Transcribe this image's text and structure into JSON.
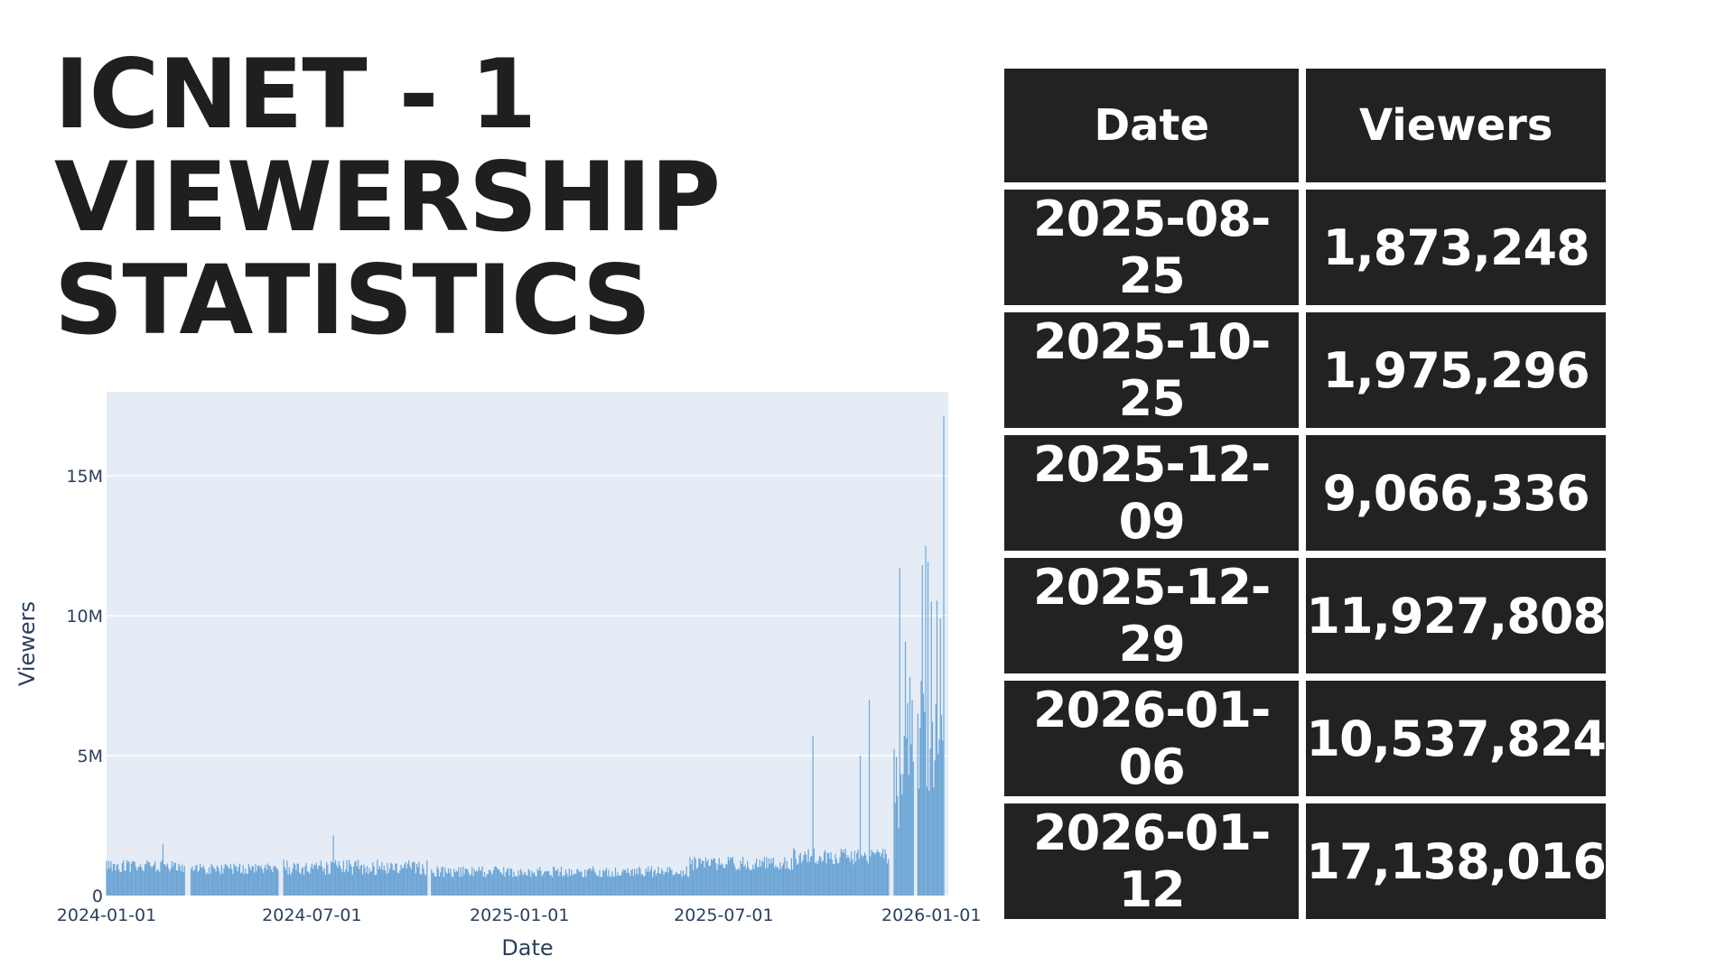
{
  "title": {
    "line1": "ICNET - 1",
    "line2": "VIEWERSHIP",
    "line3": "STATISTICS"
  },
  "colors": {
    "bar": "#5b9bd0",
    "plot_bg": "#e5ecf6",
    "grid": "#ffffff",
    "table_bg": "#242221",
    "table_text": "#ffffff",
    "title_text": "#1f1f1f"
  },
  "chart_data": {
    "type": "bar",
    "xlabel": "Date",
    "ylabel": "Viewers",
    "x_tick_labels": [
      "2024-01-01",
      "2024-07-01",
      "2025-01-01",
      "2025-07-01",
      "2026-01-01"
    ],
    "x_range": [
      "2024-01-01",
      "2026-01-12"
    ],
    "y_tick_labels": [
      "0",
      "5M",
      "10M",
      "15M"
    ],
    "y_ticks": [
      0,
      5000000,
      10000000,
      15000000
    ],
    "ylim": [
      0,
      18000000
    ],
    "grid": true,
    "legend": "none",
    "gaps": [
      [
        "2024-03-11",
        "2024-03-15"
      ],
      [
        "2024-06-02",
        "2024-06-05"
      ],
      [
        "2024-09-12",
        "2024-09-14"
      ],
      [
        "2024-10-12",
        "2024-10-14"
      ],
      [
        "2025-11-25",
        "2025-11-28"
      ],
      [
        "2025-12-17",
        "2025-12-19"
      ]
    ],
    "segments": [
      {
        "start": "2024-01-01",
        "end": "2024-03-10",
        "base": 1050000,
        "var": 220000
      },
      {
        "start": "2024-03-16",
        "end": "2024-06-01",
        "base": 950000,
        "var": 200000
      },
      {
        "start": "2024-06-06",
        "end": "2024-10-11",
        "base": 1000000,
        "var": 280000
      },
      {
        "start": "2024-10-15",
        "end": "2025-05-31",
        "base": 850000,
        "var": 200000
      },
      {
        "start": "2025-06-01",
        "end": "2025-08-31",
        "base": 1150000,
        "var": 250000
      },
      {
        "start": "2025-09-01",
        "end": "2025-11-24",
        "base": 1400000,
        "var": 300000
      },
      {
        "start": "2025-11-29",
        "end": "2025-12-16",
        "base": 4500000,
        "var": 2500000
      },
      {
        "start": "2025-12-20",
        "end": "2026-01-12",
        "base": 5200000,
        "var": 2500000
      }
    ],
    "peaks": [
      {
        "x": "2024-02-20",
        "y": 1850000
      },
      {
        "x": "2024-07-20",
        "y": 2150000
      },
      {
        "x": "2025-09-18",
        "y": 5700000
      },
      {
        "x": "2025-10-30",
        "y": 5000000
      },
      {
        "x": "2025-11-07",
        "y": 7000000
      },
      {
        "x": "2025-11-30",
        "y": 3300000
      },
      {
        "x": "2025-12-04",
        "y": 11700000
      },
      {
        "x": "2025-12-09",
        "y": 9066336
      },
      {
        "x": "2025-12-13",
        "y": 7800000
      },
      {
        "x": "2025-12-24",
        "y": 11800000
      },
      {
        "x": "2025-12-27",
        "y": 12500000
      },
      {
        "x": "2025-12-29",
        "y": 11927808
      },
      {
        "x": "2026-01-01",
        "y": 10500000
      },
      {
        "x": "2026-01-06",
        "y": 10537824
      },
      {
        "x": "2026-01-09",
        "y": 9900000
      },
      {
        "x": "2026-01-12",
        "y": 17138016
      }
    ]
  },
  "table": {
    "headers": [
      "Date",
      "Viewers"
    ],
    "rows": [
      [
        "2025-08-25",
        "1,873,248"
      ],
      [
        "2025-10-25",
        "1,975,296"
      ],
      [
        "2025-12-09",
        "9,066,336"
      ],
      [
        "2025-12-29",
        "11,927,808"
      ],
      [
        "2026-01-06",
        "10,537,824"
      ],
      [
        "2026-01-12",
        "17,138,016"
      ]
    ]
  }
}
